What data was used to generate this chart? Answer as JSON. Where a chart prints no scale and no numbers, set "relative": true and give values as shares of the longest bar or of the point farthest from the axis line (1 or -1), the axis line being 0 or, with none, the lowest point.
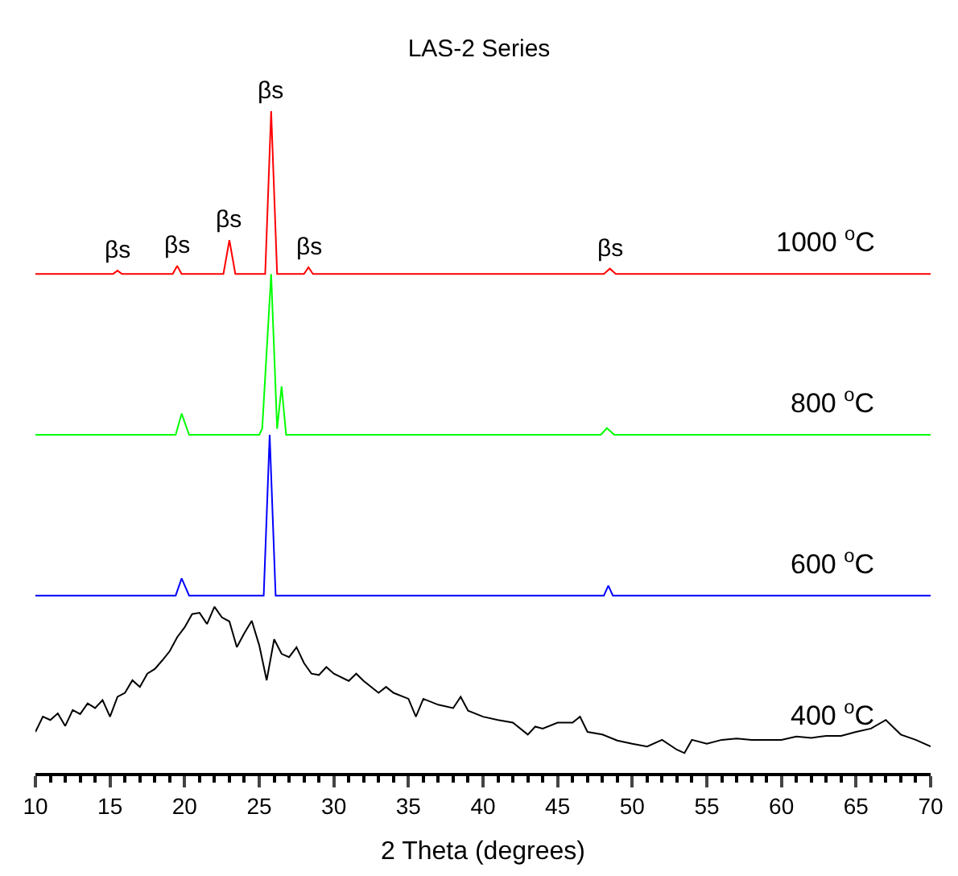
{
  "chart_data": {
    "type": "line",
    "title": "LAS-2 Series",
    "xlabel": "2 Theta (degrees)",
    "relative": true,
    "xlim": [
      10,
      70
    ],
    "xticks": [
      10,
      15,
      20,
      25,
      30,
      35,
      40,
      45,
      50,
      55,
      60,
      65,
      70
    ],
    "legend": false,
    "marker": "none",
    "line_style": "solid",
    "tick_labels": "x",
    "series": [
      {
        "name": "1000 $^{o}$C",
        "color": "#ff0000",
        "x": [
          10,
          15.2,
          15.5,
          15.8,
          19.2,
          19.5,
          19.8,
          22.6,
          23,
          23.4,
          25.4,
          25.8,
          26.2,
          28,
          28.3,
          28.6,
          48.1,
          48.5,
          48.9,
          70
        ],
        "values": [
          0.754,
          0.754,
          0.759,
          0.754,
          0.754,
          0.766,
          0.754,
          0.754,
          0.805,
          0.754,
          0.754,
          1.0,
          0.754,
          0.754,
          0.764,
          0.754,
          0.754,
          0.762,
          0.754,
          0.754
        ]
      },
      {
        "name": "800 $^{o}$C",
        "color": "#00ff00",
        "x": [
          10,
          19.4,
          19.8,
          20.3,
          25.0,
          25.2,
          25.8,
          26.2,
          26.5,
          26.8,
          47.9,
          48.3,
          48.8,
          70
        ],
        "values": [
          0.511,
          0.511,
          0.543,
          0.511,
          0.511,
          0.52,
          0.754,
          0.52,
          0.584,
          0.511,
          0.511,
          0.521,
          0.511,
          0.511
        ]
      },
      {
        "name": "600 $^{o}$C",
        "color": "#0000ff",
        "x": [
          10,
          19.4,
          19.8,
          20.3,
          25.3,
          25.7,
          26.1,
          48.1,
          48.4,
          48.7,
          70
        ],
        "values": [
          0.268,
          0.268,
          0.294,
          0.268,
          0.268,
          0.511,
          0.268,
          0.268,
          0.283,
          0.268,
          0.268
        ]
      },
      {
        "name": "400 $^{o}$C",
        "color": "#000000",
        "x": [
          10,
          10.5,
          11,
          11.5,
          12,
          12.5,
          13,
          13.5,
          14,
          14.5,
          15,
          15.5,
          16,
          16.5,
          17,
          17.5,
          18,
          18.5,
          19,
          19.5,
          20,
          20.5,
          21,
          21.5,
          22,
          22.5,
          23,
          23.5,
          24,
          24.5,
          25,
          25.5,
          26,
          26.5,
          27,
          27.5,
          28,
          28.5,
          29,
          29.5,
          30,
          31,
          31.5,
          32,
          33,
          33.5,
          34,
          35,
          35.5,
          36,
          37,
          38,
          38.5,
          39,
          40,
          41,
          42,
          43,
          43.5,
          44,
          45,
          46,
          46.5,
          47,
          48,
          49,
          50,
          51,
          52,
          53,
          53.5,
          54,
          55,
          56,
          57,
          58,
          59,
          60,
          61,
          62,
          63,
          64,
          65,
          66,
          67,
          68,
          69,
          70
        ],
        "values": [
          0.062,
          0.085,
          0.08,
          0.09,
          0.071,
          0.095,
          0.089,
          0.105,
          0.098,
          0.11,
          0.085,
          0.115,
          0.121,
          0.14,
          0.13,
          0.15,
          0.157,
          0.17,
          0.184,
          0.205,
          0.22,
          0.24,
          0.242,
          0.225,
          0.251,
          0.235,
          0.229,
          0.19,
          0.211,
          0.23,
          0.193,
          0.14,
          0.202,
          0.18,
          0.175,
          0.19,
          0.166,
          0.15,
          0.148,
          0.16,
          0.15,
          0.139,
          0.15,
          0.139,
          0.121,
          0.13,
          0.121,
          0.112,
          0.085,
          0.112,
          0.103,
          0.098,
          0.115,
          0.094,
          0.085,
          0.08,
          0.076,
          0.058,
          0.07,
          0.067,
          0.076,
          0.076,
          0.085,
          0.062,
          0.058,
          0.049,
          0.044,
          0.04,
          0.05,
          0.035,
          0.03,
          0.05,
          0.044,
          0.05,
          0.052,
          0.05,
          0.05,
          0.05,
          0.055,
          0.053,
          0.056,
          0.056,
          0.062,
          0.067,
          0.08,
          0.058,
          0.05,
          0.04
        ]
      }
    ],
    "annotations": [
      {
        "text": "βs",
        "x": 15.5,
        "y": 0.759
      },
      {
        "text": "βs",
        "x": 19.5,
        "y": 0.766
      },
      {
        "text": "βs",
        "x": 23,
        "y": 0.805
      },
      {
        "text": "βs",
        "x": 25.8,
        "y": 1.0
      },
      {
        "text": "βs",
        "x": 28.3,
        "y": 0.764
      },
      {
        "text": "βs",
        "x": 48.5,
        "y": 0.762
      }
    ]
  }
}
